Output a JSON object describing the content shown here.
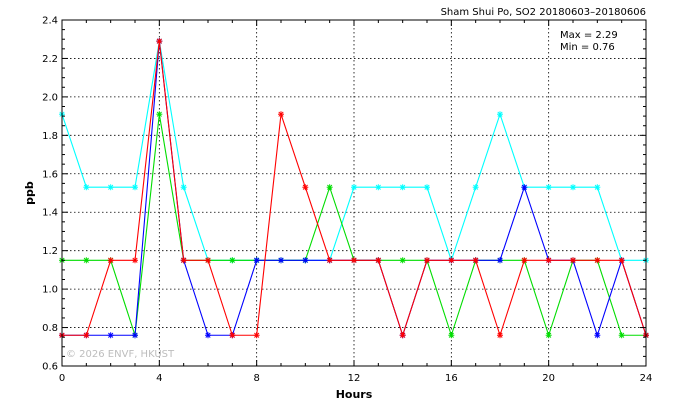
{
  "chart_data": {
    "type": "line",
    "title": "Sham Shui Po, SO2 20180603–20180606",
    "xlabel": "Hours",
    "ylabel": "ppb",
    "xlim": [
      0,
      24
    ],
    "ylim": [
      0.6,
      2.4
    ],
    "xticks": [
      "0",
      "4",
      "8",
      "12",
      "16",
      "20",
      "24"
    ],
    "yticks": [
      "0.6",
      "0.8",
      "1.0",
      "1.2",
      "1.4",
      "1.6",
      "1.8",
      "2.0",
      "2.2",
      "2.4"
    ],
    "grid": true,
    "annotations": {
      "max": "Max = 2.29",
      "min": "Min = 0.76"
    },
    "watermark": "© 2026  ENVF, HKUST",
    "x": [
      0,
      1,
      2,
      3,
      4,
      5,
      6,
      7,
      8,
      9,
      10,
      11,
      12,
      13,
      14,
      15,
      16,
      17,
      18,
      19,
      20,
      21,
      22,
      23,
      24
    ],
    "series": [
      {
        "color": "#00ffff",
        "values": [
          1.91,
          1.53,
          1.53,
          1.53,
          2.29,
          1.53,
          1.15,
          1.15,
          1.15,
          1.15,
          1.15,
          1.15,
          1.53,
          1.53,
          1.53,
          1.53,
          1.15,
          1.53,
          1.91,
          1.53,
          1.53,
          1.53,
          1.53,
          1.15,
          1.15
        ]
      },
      {
        "color": "#00dd00",
        "values": [
          1.15,
          1.15,
          1.15,
          0.76,
          1.91,
          1.15,
          1.15,
          1.15,
          1.15,
          1.15,
          1.15,
          1.53,
          1.15,
          1.15,
          1.15,
          1.15,
          0.76,
          1.15,
          1.15,
          1.15,
          0.76,
          1.15,
          1.15,
          0.76,
          0.76
        ]
      },
      {
        "color": "#0000ff",
        "values": [
          0.76,
          0.76,
          0.76,
          0.76,
          2.29,
          1.15,
          0.76,
          0.76,
          1.15,
          1.15,
          1.15,
          1.15,
          1.15,
          1.15,
          0.76,
          1.15,
          1.15,
          1.15,
          1.15,
          1.53,
          1.15,
          1.15,
          0.76,
          1.15,
          0.76
        ]
      },
      {
        "color": "#ff0000",
        "values": [
          0.76,
          0.76,
          1.15,
          1.15,
          2.29,
          1.15,
          1.15,
          0.76,
          0.76,
          1.91,
          1.53,
          1.15,
          1.15,
          1.15,
          0.76,
          1.15,
          1.15,
          1.15,
          0.76,
          1.15,
          1.15,
          1.15,
          1.15,
          1.15,
          0.76
        ]
      }
    ]
  }
}
